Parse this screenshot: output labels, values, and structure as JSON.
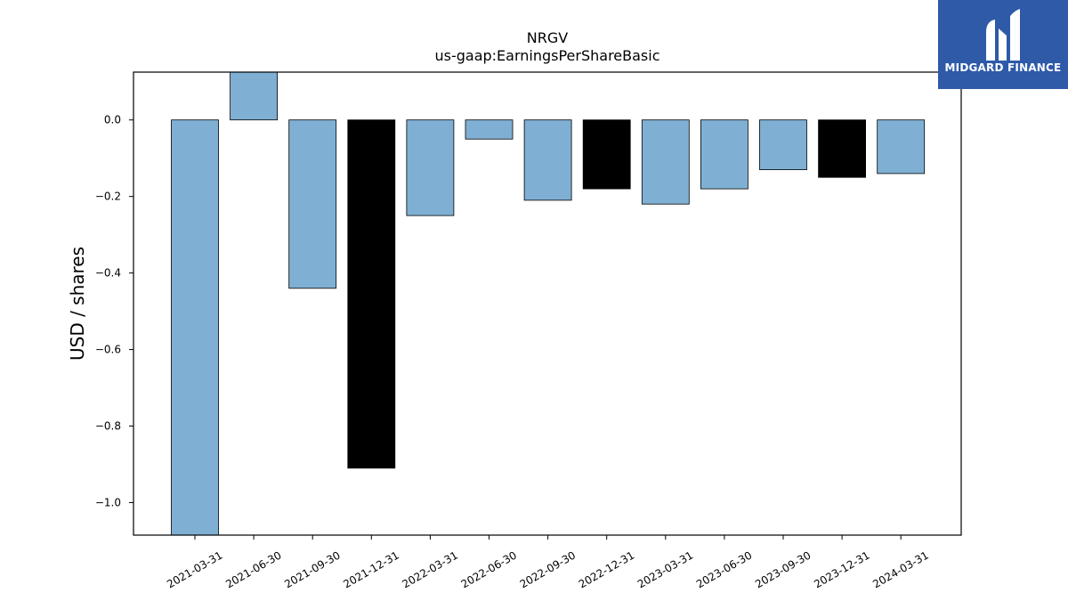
{
  "brand": {
    "name": "MIDGARD FINANCE",
    "logo_icon": "midgard-logo-icon",
    "background": "#2e5aa8"
  },
  "chart_data": {
    "type": "bar",
    "title": "NRGV",
    "subtitle": "us-gaap:EarningsPerShareBasic",
    "xlabel": "",
    "ylabel": "USD / shares",
    "ylim": [
      -1.085,
      0.125
    ],
    "yticks": [
      0.0,
      -0.2,
      -0.4,
      -0.6,
      -0.8,
      -1.0
    ],
    "ytick_labels": [
      "0.0",
      "−0.2",
      "−0.4",
      "−0.6",
      "−0.8",
      "−1.0"
    ],
    "grid": false,
    "categories": [
      "2021-03-31",
      "2021-06-30",
      "2021-09-30",
      "2021-12-31",
      "2022-03-31",
      "2022-06-30",
      "2022-09-30",
      "2022-12-31",
      "2023-03-31",
      "2023-06-30",
      "2023-09-30",
      "2023-12-31",
      "2024-03-31"
    ],
    "values": [
      -1.09,
      0.13,
      -0.44,
      -0.91,
      -0.25,
      -0.05,
      -0.21,
      -0.18,
      -0.22,
      -0.18,
      -0.13,
      -0.15,
      -0.14
    ],
    "bar_colors": [
      "#7fb0d4",
      "#7fb0d4",
      "#7fb0d4",
      "#000000",
      "#7fb0d4",
      "#7fb0d4",
      "#7fb0d4",
      "#000000",
      "#7fb0d4",
      "#7fb0d4",
      "#7fb0d4",
      "#000000",
      "#7fb0d4"
    ]
  }
}
